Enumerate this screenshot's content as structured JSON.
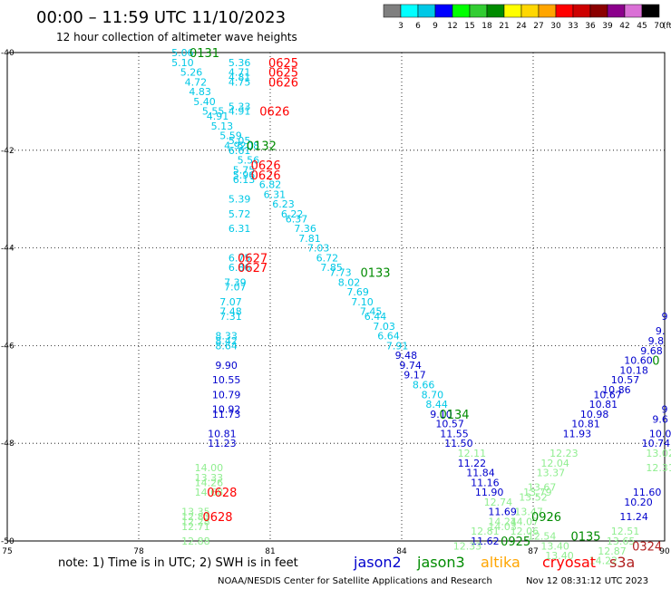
{
  "chart_data": {
    "type": "scatter",
    "title": "00:00 – 11:59 UTC 11/10/2023",
    "subtitle": "12 hour collection of altimeter wave heights",
    "xlim": [
      75,
      90
    ],
    "ylim": [
      -50,
      -40
    ],
    "grid": true,
    "x_ticks": [
      "75",
      "78",
      "81",
      "84",
      "87",
      "90"
    ],
    "y_ticks": [
      "-40",
      "-42",
      "-44",
      "-46",
      "-48",
      "-50"
    ],
    "scale": {
      "values": [
        "3",
        "6",
        "9",
        "12",
        "15",
        "18",
        "21",
        "24",
        "27",
        "30",
        "33",
        "36",
        "39",
        "42",
        "45",
        "70"
      ],
      "unit": "(ft)",
      "colors": [
        "#7f7f7f",
        "#00ffff",
        "#00c8e6",
        "#0000ff",
        "#00ff00",
        "#32cd32",
        "#008b00",
        "#ffff00",
        "#ffd700",
        "#ffa500",
        "#ff0000",
        "#cd0000",
        "#8b0000",
        "#8b008b",
        "#da70d6",
        "#000000"
      ]
    },
    "legend": {
      "note": "note: 1) Time is in UTC; 2) SWH is in feet",
      "items": [
        {
          "name": "jason2",
          "color": "#0000cd"
        },
        {
          "name": "jason3",
          "color": "#008b00"
        },
        {
          "name": "altika",
          "color": "#ffa500"
        },
        {
          "name": "cryosat",
          "color": "#ff0000"
        },
        {
          "name": "s3a",
          "color": "#b22222"
        }
      ]
    },
    "footer_left": "NOAA/NESDIS Center for Satellite Applications and Research",
    "footer_right": "Nov 12 08:31:12 UTC 2023",
    "points": [
      {
        "x": 79.0,
        "y": -40.0,
        "v": "5.06",
        "c": "#00c8e6"
      },
      {
        "x": 79.0,
        "y": -40.2,
        "v": "5.10",
        "c": "#00c8e6"
      },
      {
        "x": 79.2,
        "y": -40.4,
        "v": "5.26",
        "c": "#00c8e6"
      },
      {
        "x": 79.3,
        "y": -40.6,
        "v": "4.72",
        "c": "#00c8e6"
      },
      {
        "x": 79.4,
        "y": -40.8,
        "v": "4.83",
        "c": "#00c8e6"
      },
      {
        "x": 79.5,
        "y": -41.0,
        "v": "5.40",
        "c": "#00c8e6"
      },
      {
        "x": 79.7,
        "y": -41.2,
        "v": "5.55",
        "c": "#00c8e6"
      },
      {
        "x": 79.8,
        "y": -41.3,
        "v": "4.91",
        "c": "#00c8e6"
      },
      {
        "x": 79.9,
        "y": -41.5,
        "v": "5.13",
        "c": "#00c8e6"
      },
      {
        "x": 80.1,
        "y": -41.7,
        "v": "5.59",
        "c": "#00c8e6"
      },
      {
        "x": 80.3,
        "y": -41.8,
        "v": "5.05",
        "c": "#00c8e6"
      },
      {
        "x": 80.2,
        "y": -41.9,
        "v": "4.92",
        "c": "#00c8e6"
      },
      {
        "x": 80.5,
        "y": -41.9,
        "v": "5.08",
        "c": "#00c8e6"
      },
      {
        "x": 80.3,
        "y": -42.0,
        "v": "6.61",
        "c": "#00c8e6"
      },
      {
        "x": 80.5,
        "y": -42.2,
        "v": "5.56",
        "c": "#00c8e6"
      },
      {
        "x": 80.4,
        "y": -42.4,
        "v": "5.75",
        "c": "#00c8e6"
      },
      {
        "x": 80.4,
        "y": -42.5,
        "v": "5.96",
        "c": "#00c8e6"
      },
      {
        "x": 80.4,
        "y": -42.6,
        "v": "6.13",
        "c": "#00c8e6"
      },
      {
        "x": 81.0,
        "y": -42.7,
        "v": "6.82",
        "c": "#00c8e6"
      },
      {
        "x": 81.1,
        "y": -42.9,
        "v": "6.31",
        "c": "#00c8e6"
      },
      {
        "x": 80.3,
        "y": -43.0,
        "v": "5.39",
        "c": "#00c8e6"
      },
      {
        "x": 81.3,
        "y": -43.1,
        "v": "6.23",
        "c": "#00c8e6"
      },
      {
        "x": 81.5,
        "y": -43.3,
        "v": "6.22",
        "c": "#00c8e6"
      },
      {
        "x": 80.3,
        "y": -43.3,
        "v": "5.72",
        "c": "#00c8e6"
      },
      {
        "x": 81.6,
        "y": -43.4,
        "v": "6.37",
        "c": "#00c8e6"
      },
      {
        "x": 80.3,
        "y": -43.6,
        "v": "6.31",
        "c": "#00c8e6"
      },
      {
        "x": 81.8,
        "y": -43.6,
        "v": "7.36",
        "c": "#00c8e6"
      },
      {
        "x": 81.9,
        "y": -43.8,
        "v": "7.81",
        "c": "#00c8e6"
      },
      {
        "x": 82.1,
        "y": -44.0,
        "v": "7.03",
        "c": "#00c8e6"
      },
      {
        "x": 82.3,
        "y": -44.2,
        "v": "6.72",
        "c": "#00c8e6"
      },
      {
        "x": 80.3,
        "y": -44.2,
        "v": "6.75",
        "c": "#00c8e6"
      },
      {
        "x": 80.3,
        "y": -44.4,
        "v": "6.86",
        "c": "#00c8e6"
      },
      {
        "x": 82.4,
        "y": -44.4,
        "v": "7.85",
        "c": "#00c8e6"
      },
      {
        "x": 82.6,
        "y": -44.5,
        "v": "7.73",
        "c": "#00c8e6"
      },
      {
        "x": 82.8,
        "y": -44.7,
        "v": "8.02",
        "c": "#00c8e6"
      },
      {
        "x": 80.2,
        "y": -44.7,
        "v": "7.39",
        "c": "#00c8e6"
      },
      {
        "x": 83.0,
        "y": -44.9,
        "v": "7.69",
        "c": "#00c8e6"
      },
      {
        "x": 80.2,
        "y": -44.8,
        "v": "7.07",
        "c": "#00c8e6"
      },
      {
        "x": 83.1,
        "y": -45.1,
        "v": "7.10",
        "c": "#00c8e6"
      },
      {
        "x": 80.1,
        "y": -45.1,
        "v": "7.07",
        "c": "#00c8e6"
      },
      {
        "x": 83.3,
        "y": -45.3,
        "v": "7.45",
        "c": "#00c8e6"
      },
      {
        "x": 80.1,
        "y": -45.3,
        "v": "7.48",
        "c": "#00c8e6"
      },
      {
        "x": 80.1,
        "y": -45.4,
        "v": "7.31",
        "c": "#00c8e6"
      },
      {
        "x": 83.4,
        "y": -45.4,
        "v": "6.44",
        "c": "#00c8e6"
      },
      {
        "x": 83.6,
        "y": -45.6,
        "v": "7.03",
        "c": "#00c8e6"
      },
      {
        "x": 80.0,
        "y": -45.8,
        "v": "8.33",
        "c": "#00c8e6"
      },
      {
        "x": 80.0,
        "y": -45.9,
        "v": "8.42",
        "c": "#00c8e6"
      },
      {
        "x": 83.7,
        "y": -45.8,
        "v": "6.64",
        "c": "#00c8e6"
      },
      {
        "x": 80.0,
        "y": -46.0,
        "v": "8.64",
        "c": "#00c8e6"
      },
      {
        "x": 83.9,
        "y": -46.0,
        "v": "7.91",
        "c": "#00c8e6"
      },
      {
        "x": 84.1,
        "y": -46.2,
        "v": "9.48",
        "c": "#0000cd"
      },
      {
        "x": 84.2,
        "y": -46.4,
        "v": "9.74",
        "c": "#0000cd"
      },
      {
        "x": 80.0,
        "y": -46.4,
        "v": "9.90",
        "c": "#0000cd"
      },
      {
        "x": 84.3,
        "y": -46.6,
        "v": "9.17",
        "c": "#0000cd"
      },
      {
        "x": 80.0,
        "y": -46.7,
        "v": "10.55",
        "c": "#0000cd"
      },
      {
        "x": 84.5,
        "y": -46.8,
        "v": "8.66",
        "c": "#00c8e6"
      },
      {
        "x": 84.7,
        "y": -47.0,
        "v": "8.70",
        "c": "#00c8e6"
      },
      {
        "x": 80.0,
        "y": -47.0,
        "v": "10.79",
        "c": "#0000cd"
      },
      {
        "x": 84.8,
        "y": -47.2,
        "v": "8.44",
        "c": "#00c8e6"
      },
      {
        "x": 80.0,
        "y": -47.3,
        "v": "10.92",
        "c": "#0000cd"
      },
      {
        "x": 80.0,
        "y": -47.4,
        "v": "11.73",
        "c": "#0000cd"
      },
      {
        "x": 84.9,
        "y": -47.4,
        "v": "9.10",
        "c": "#0000cd"
      },
      {
        "x": 85.1,
        "y": -47.6,
        "v": "10.57",
        "c": "#0000cd"
      },
      {
        "x": 85.2,
        "y": -47.8,
        "v": "11.55",
        "c": "#0000cd"
      },
      {
        "x": 79.9,
        "y": -47.8,
        "v": "10.81",
        "c": "#0000cd"
      },
      {
        "x": 79.9,
        "y": -48.0,
        "v": "11.23",
        "c": "#0000cd"
      },
      {
        "x": 85.3,
        "y": -48.0,
        "v": "11.50",
        "c": "#0000cd"
      },
      {
        "x": 85.6,
        "y": -48.2,
        "v": "12.11",
        "c": "#90ee90"
      },
      {
        "x": 85.6,
        "y": -48.4,
        "v": "11.22",
        "c": "#0000cd"
      },
      {
        "x": 79.6,
        "y": -48.5,
        "v": "14.00",
        "c": "#90ee90"
      },
      {
        "x": 85.8,
        "y": -48.6,
        "v": "11.84",
        "c": "#0000cd"
      },
      {
        "x": 79.6,
        "y": -48.7,
        "v": "13.33",
        "c": "#90ee90"
      },
      {
        "x": 85.9,
        "y": -48.8,
        "v": "11.16",
        "c": "#0000cd"
      },
      {
        "x": 79.6,
        "y": -48.8,
        "v": "14.26",
        "c": "#90ee90"
      },
      {
        "x": 79.6,
        "y": -49.0,
        "v": "14.68",
        "c": "#90ee90"
      },
      {
        "x": 86.0,
        "y": -49.0,
        "v": "11.90",
        "c": "#0000cd"
      },
      {
        "x": 86.2,
        "y": -49.2,
        "v": "12.74",
        "c": "#90ee90"
      },
      {
        "x": 86.3,
        "y": -49.4,
        "v": "11.69",
        "c": "#0000cd"
      },
      {
        "x": 86.3,
        "y": -49.6,
        "v": "14.24",
        "c": "#90ee90"
      },
      {
        "x": 86.3,
        "y": -49.7,
        "v": "14.03",
        "c": "#90ee90"
      },
      {
        "x": 79.3,
        "y": -49.4,
        "v": "13.35",
        "c": "#90ee90"
      },
      {
        "x": 79.3,
        "y": -49.5,
        "v": "12.83",
        "c": "#90ee90"
      },
      {
        "x": 79.3,
        "y": -49.6,
        "v": "12.28",
        "c": "#90ee90"
      },
      {
        "x": 79.3,
        "y": -49.7,
        "v": "12.71",
        "c": "#90ee90"
      },
      {
        "x": 85.9,
        "y": -49.8,
        "v": "12.81",
        "c": "#90ee90"
      },
      {
        "x": 85.9,
        "y": -50.0,
        "v": "11.62",
        "c": "#0000cd"
      },
      {
        "x": 79.3,
        "y": -50.0,
        "v": "12.88",
        "c": "#90ee90"
      },
      {
        "x": 85.5,
        "y": -50.1,
        "v": "12.33",
        "c": "#90ee90"
      },
      {
        "x": 86.8,
        "y": -49.8,
        "v": "12.06",
        "c": "#90ee90"
      },
      {
        "x": 86.8,
        "y": -49.6,
        "v": "14.07",
        "c": "#90ee90"
      },
      {
        "x": 86.9,
        "y": -49.4,
        "v": "13.47",
        "c": "#90ee90"
      },
      {
        "x": 87.2,
        "y": -49.9,
        "v": "12.54",
        "c": "#90ee90"
      },
      {
        "x": 87.5,
        "y": -50.1,
        "v": "13.40",
        "c": "#90ee90"
      },
      {
        "x": 87.6,
        "y": -50.3,
        "v": "13.40",
        "c": "#90ee90"
      },
      {
        "x": 87.0,
        "y": -49.1,
        "v": "13.52",
        "c": "#90ee90"
      },
      {
        "x": 87.1,
        "y": -49.0,
        "v": "13.79",
        "c": "#90ee90"
      },
      {
        "x": 87.2,
        "y": -48.9,
        "v": "13.67",
        "c": "#90ee90"
      },
      {
        "x": 87.4,
        "y": -48.6,
        "v": "13.37",
        "c": "#90ee90"
      },
      {
        "x": 87.5,
        "y": -48.4,
        "v": "12.04",
        "c": "#90ee90"
      },
      {
        "x": 87.7,
        "y": -48.2,
        "v": "12.23",
        "c": "#90ee90"
      },
      {
        "x": 88.0,
        "y": -47.8,
        "v": "11.93",
        "c": "#0000cd"
      },
      {
        "x": 88.2,
        "y": -47.6,
        "v": "10.81",
        "c": "#0000cd"
      },
      {
        "x": 88.4,
        "y": -47.4,
        "v": "10.98",
        "c": "#0000cd"
      },
      {
        "x": 88.6,
        "y": -47.2,
        "v": "10.81",
        "c": "#0000cd"
      },
      {
        "x": 88.7,
        "y": -47.0,
        "v": "10.67",
        "c": "#0000cd"
      },
      {
        "x": 88.9,
        "y": -46.9,
        "v": "10.86",
        "c": "#0000cd"
      },
      {
        "x": 89.1,
        "y": -46.7,
        "v": "10.57",
        "c": "#0000cd"
      },
      {
        "x": 89.3,
        "y": -46.5,
        "v": "10.18",
        "c": "#0000cd"
      },
      {
        "x": 89.4,
        "y": -46.3,
        "v": "10.60",
        "c": "#0000cd"
      },
      {
        "x": 89.7,
        "y": -46.1,
        "v": "9.68",
        "c": "#0000cd"
      },
      {
        "x": 89.8,
        "y": -45.9,
        "v": "9.8",
        "c": "#0000cd"
      },
      {
        "x": 89.9,
        "y": -45.7,
        "v": "9.",
        "c": "#0000cd"
      },
      {
        "x": 90.0,
        "y": -45.4,
        "v": "9",
        "c": "#0000cd"
      },
      {
        "x": 89.9,
        "y": -48.2,
        "v": "13.02",
        "c": "#90ee90"
      },
      {
        "x": 89.8,
        "y": -48.0,
        "v": "10.74",
        "c": "#0000cd"
      },
      {
        "x": 89.9,
        "y": -47.8,
        "v": "10.0",
        "c": "#0000cd"
      },
      {
        "x": 89.9,
        "y": -47.5,
        "v": "9.6",
        "c": "#0000cd"
      },
      {
        "x": 90.0,
        "y": -47.3,
        "v": "9",
        "c": "#0000cd"
      },
      {
        "x": 89.9,
        "y": -48.5,
        "v": "12.31",
        "c": "#90ee90"
      },
      {
        "x": 89.6,
        "y": -49.0,
        "v": "11.60",
        "c": "#0000cd"
      },
      {
        "x": 89.4,
        "y": -49.2,
        "v": "10.20",
        "c": "#0000cd"
      },
      {
        "x": 89.3,
        "y": -49.5,
        "v": "11.24",
        "c": "#0000cd"
      },
      {
        "x": 89.1,
        "y": -49.8,
        "v": "12.51",
        "c": "#90ee90"
      },
      {
        "x": 89.0,
        "y": -50.0,
        "v": "13.65",
        "c": "#90ee90"
      },
      {
        "x": 88.8,
        "y": -50.2,
        "v": "12.87",
        "c": "#90ee90"
      },
      {
        "x": 88.6,
        "y": -50.4,
        "v": "14.22",
        "c": "#90ee90"
      },
      {
        "x": 80.3,
        "y": -40.2,
        "v": "5.36",
        "c": "#00c8e6"
      },
      {
        "x": 80.3,
        "y": -40.4,
        "v": "4.71",
        "c": "#00c8e6"
      },
      {
        "x": 80.3,
        "y": -40.5,
        "v": "4.81",
        "c": "#00c8e6"
      },
      {
        "x": 80.3,
        "y": -40.6,
        "v": "4.75",
        "c": "#00c8e6"
      },
      {
        "x": 80.3,
        "y": -41.1,
        "v": "5.33",
        "c": "#00c8e6"
      },
      {
        "x": 80.3,
        "y": -41.2,
        "v": "4.91",
        "c": "#00c8e6"
      }
    ],
    "passes": [
      {
        "x": 79.5,
        "y": -40.0,
        "v": "0131",
        "c": "#008b00"
      },
      {
        "x": 81.3,
        "y": -40.2,
        "v": "0625",
        "c": "#ff0000"
      },
      {
        "x": 81.3,
        "y": -40.4,
        "v": "0625",
        "c": "#ff0000"
      },
      {
        "x": 81.3,
        "y": -40.6,
        "v": "0626",
        "c": "#ff0000"
      },
      {
        "x": 81.1,
        "y": -41.2,
        "v": "0626",
        "c": "#ff0000"
      },
      {
        "x": 80.8,
        "y": -41.9,
        "v": "0132",
        "c": "#008b00"
      },
      {
        "x": 80.9,
        "y": -42.3,
        "v": "0626",
        "c": "#ff0000"
      },
      {
        "x": 80.9,
        "y": -42.5,
        "v": "0626",
        "c": "#ff0000"
      },
      {
        "x": 80.6,
        "y": -44.2,
        "v": "0627",
        "c": "#ff0000"
      },
      {
        "x": 80.6,
        "y": -44.4,
        "v": "0627",
        "c": "#ff0000"
      },
      {
        "x": 83.4,
        "y": -44.5,
        "v": "0133",
        "c": "#008b00"
      },
      {
        "x": 85.2,
        "y": -47.4,
        "v": "0134",
        "c": "#008b00"
      },
      {
        "x": 79.9,
        "y": -49.0,
        "v": "0628",
        "c": "#ff0000"
      },
      {
        "x": 79.8,
        "y": -49.5,
        "v": "0628",
        "c": "#ff0000"
      },
      {
        "x": 87.3,
        "y": -49.5,
        "v": "0926",
        "c": "#008b00"
      },
      {
        "x": 86.6,
        "y": -50.0,
        "v": "0925",
        "c": "#008b00"
      },
      {
        "x": 88.2,
        "y": -49.9,
        "v": "0135",
        "c": "#008b00"
      },
      {
        "x": 89.8,
        "y": -46.3,
        "v": "0",
        "c": "#008b00"
      },
      {
        "x": 89.6,
        "y": -50.1,
        "v": "0324",
        "c": "#b22222"
      }
    ]
  }
}
